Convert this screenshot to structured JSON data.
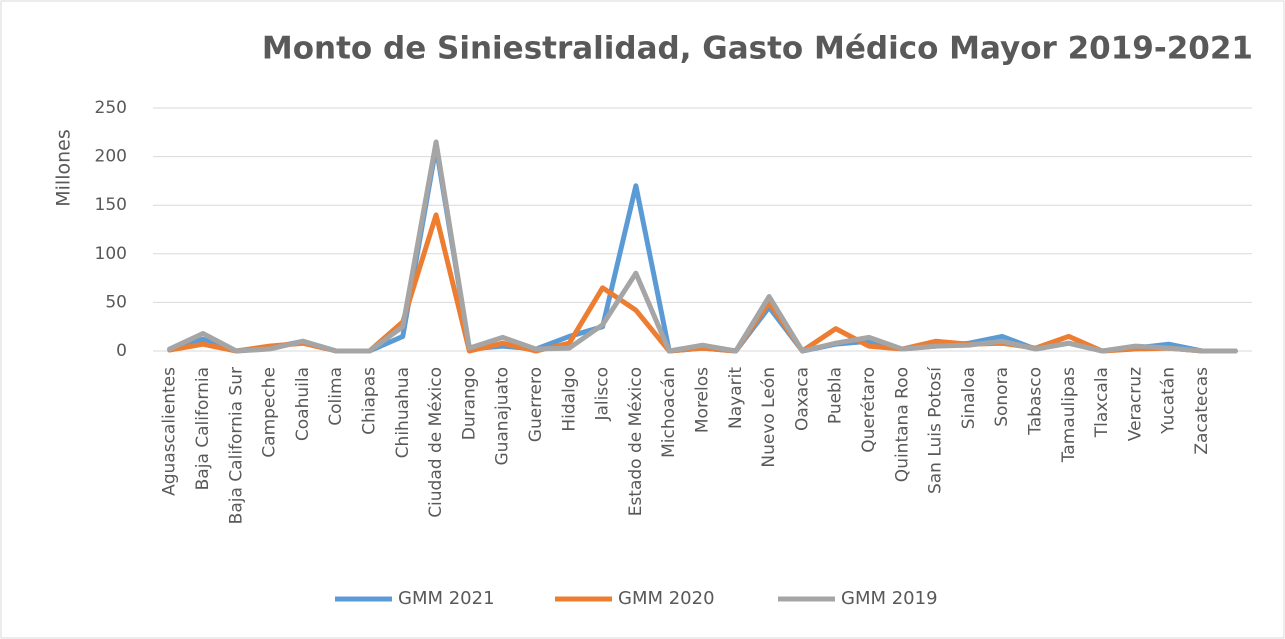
{
  "chart_data": {
    "type": "line",
    "title": "Monto de Siniestralidad, Gasto Médico Mayor 2019-2021",
    "y_label": "Millones",
    "categories": [
      "Aguascalientes",
      "Baja California",
      "Baja California Sur",
      "Campeche",
      "Coahuila",
      "Colima",
      "Chiapas",
      "Chihuahua",
      "Ciudad de México",
      "Durango",
      "Guanajuato",
      "Guerrero",
      "Hidalgo",
      "Jalisco",
      "Estado de México",
      "Michoacán",
      "Morelos",
      "Nayarit",
      "Nuevo León",
      "Oaxaca",
      "Puebla",
      "Querétaro",
      "Quintana Roo",
      "San Luis Potosí",
      "Sinaloa",
      "Sonora",
      "Tabasco",
      "Tamaulipas",
      "Tlaxcala",
      "Veracruz",
      "Yucatán",
      "Zacatecas",
      null
    ],
    "series": [
      {
        "name": "GMM 2021",
        "color": "#5b9bd5",
        "values": [
          2,
          12,
          0,
          3,
          10,
          0,
          0,
          15,
          210,
          2,
          5,
          2,
          15,
          25,
          170,
          0,
          3,
          0,
          45,
          0,
          7,
          10,
          2,
          5,
          8,
          15,
          2,
          8,
          0,
          3,
          7,
          0,
          0
        ]
      },
      {
        "name": "GMM 2020",
        "color": "#ed7d31",
        "values": [
          1,
          7,
          0,
          5,
          8,
          0,
          0,
          30,
          140,
          0,
          8,
          0,
          8,
          65,
          42,
          0,
          3,
          0,
          50,
          0,
          23,
          5,
          2,
          10,
          7,
          8,
          3,
          15,
          0,
          2,
          3,
          0,
          0
        ]
      },
      {
        "name": "GMM 2019",
        "color": "#a5a5a5",
        "values": [
          2,
          18,
          0,
          2,
          10,
          0,
          0,
          25,
          215,
          3,
          14,
          2,
          3,
          27,
          80,
          0,
          6,
          0,
          56,
          0,
          8,
          14,
          2,
          5,
          6,
          10,
          2,
          8,
          0,
          5,
          3,
          0,
          0
        ]
      }
    ],
    "ylim": [
      0,
      250
    ],
    "yticks": [
      0,
      50,
      100,
      150,
      200,
      250
    ],
    "grid": true,
    "legend": "bottom"
  }
}
